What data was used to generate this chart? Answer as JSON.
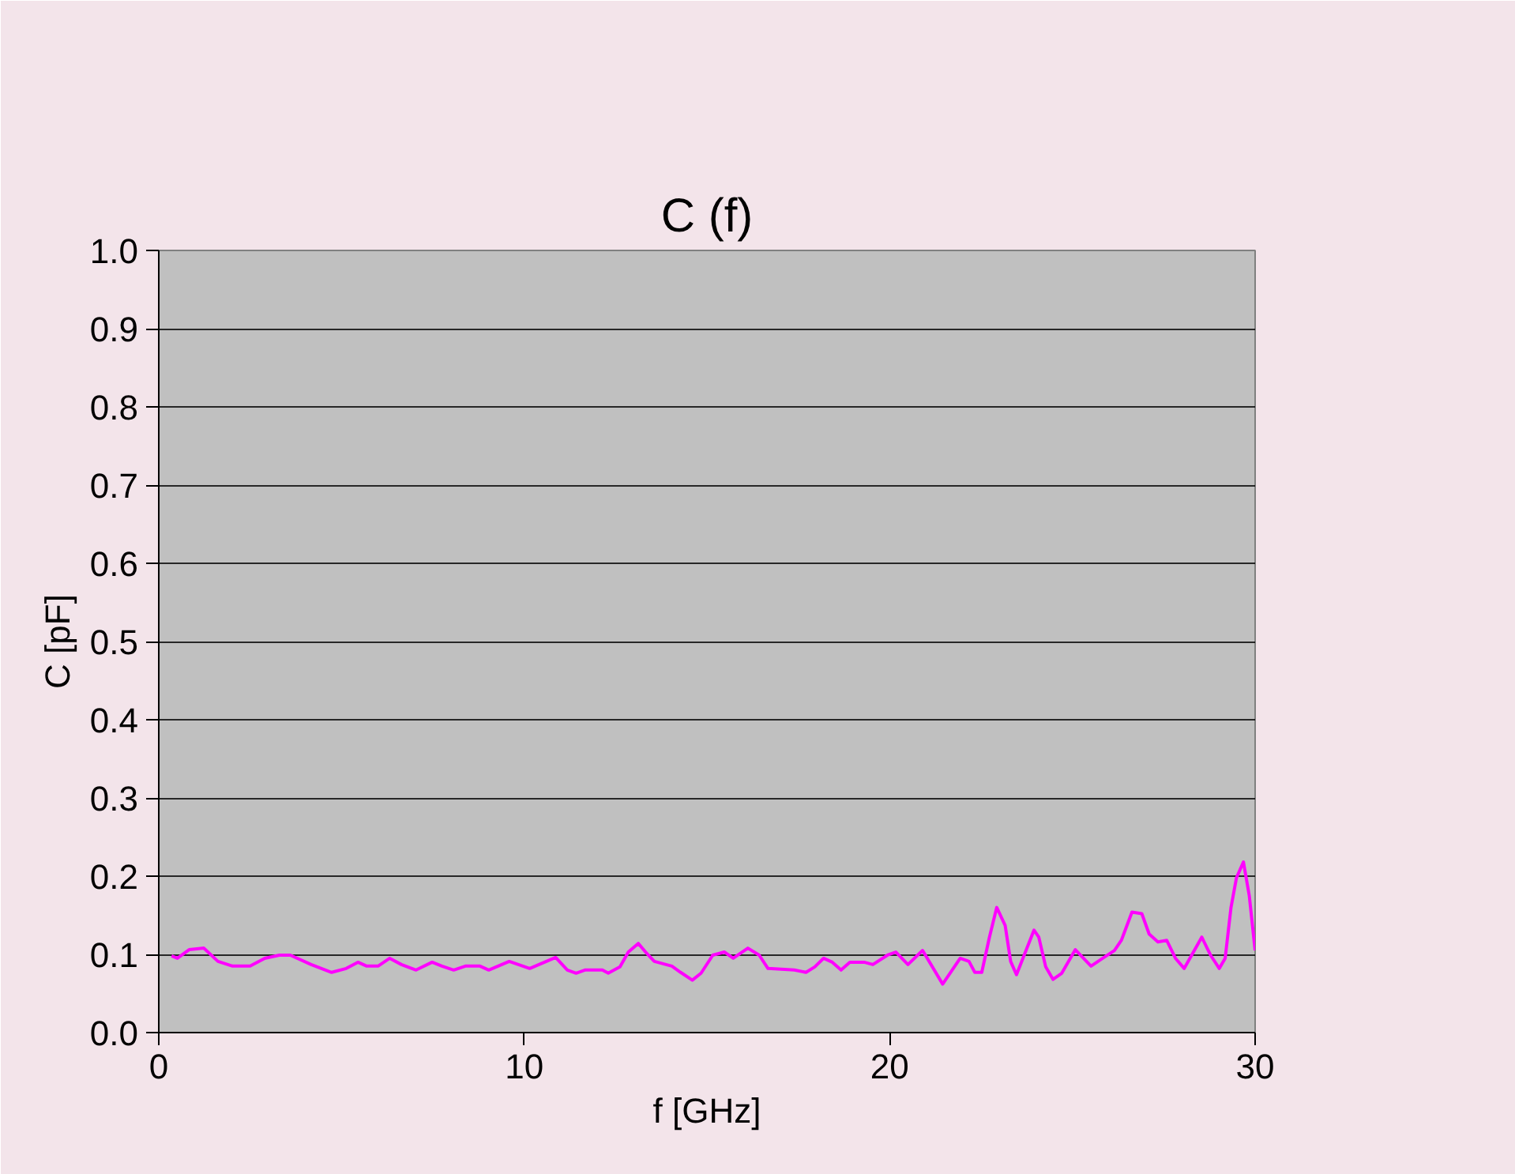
{
  "chart_data": {
    "type": "line",
    "title": "C (f)",
    "xlabel": "f [GHz]",
    "ylabel": "C [pF]",
    "xlim": [
      0,
      30
    ],
    "xticks": [
      0,
      10,
      20,
      30
    ],
    "ylim": [
      0,
      1.0
    ],
    "yticks": [
      {
        "value": 0,
        "label": "0.0"
      },
      {
        "value": 0.1,
        "label": "0.1"
      },
      {
        "value": 0.2,
        "label": "0.2"
      },
      {
        "value": 0.3,
        "label": "0.3"
      },
      {
        "value": 0.4,
        "label": "0.4"
      },
      {
        "value": 0.5,
        "label": "0.5"
      },
      {
        "value": 0.6,
        "label": "0.6"
      },
      {
        "value": 0.7,
        "label": "0.7"
      },
      {
        "value": 0.8,
        "label": "0.8"
      },
      {
        "value": 0.9,
        "label": "0.9"
      },
      {
        "value": 1.0,
        "label": "1.0"
      }
    ],
    "grid": "y",
    "marker": "none",
    "line_style": "solid",
    "series": [
      {
        "color": "#ff00ff",
        "x": [
          0.35,
          0.51,
          0.83,
          1.23,
          1.62,
          2.02,
          2.5,
          2.9,
          3.3,
          3.6,
          4.17,
          4.73,
          5.13,
          5.45,
          5.69,
          6.0,
          6.32,
          6.64,
          7.04,
          7.48,
          7.75,
          8.07,
          8.39,
          8.79,
          9.03,
          9.59,
          10.15,
          10.86,
          11.18,
          11.42,
          11.66,
          12.14,
          12.3,
          12.62,
          12.85,
          13.12,
          13.32,
          13.56,
          14.04,
          14.28,
          14.6,
          14.84,
          15.16,
          15.48,
          15.72,
          16.12,
          16.43,
          16.67,
          17.39,
          17.71,
          17.95,
          18.19,
          18.43,
          18.67,
          18.91,
          19.3,
          19.54,
          19.94,
          20.17,
          20.5,
          20.9,
          21.45,
          21.93,
          22.17,
          22.33,
          22.52,
          22.73,
          22.93,
          23.16,
          23.31,
          23.47,
          23.68,
          23.95,
          24.08,
          24.27,
          24.47,
          24.71,
          25.08,
          25.51,
          25.83,
          26.15,
          26.34,
          26.63,
          26.9,
          27.1,
          27.34,
          27.58,
          27.82,
          28.06,
          28.54,
          28.78,
          29.02,
          29.18,
          29.34,
          29.49,
          29.68,
          29.84,
          30.0
        ],
        "values": [
          0.098,
          0.095,
          0.106,
          0.108,
          0.091,
          0.085,
          0.085,
          0.095,
          0.099,
          0.099,
          0.087,
          0.077,
          0.082,
          0.09,
          0.085,
          0.085,
          0.095,
          0.087,
          0.08,
          0.09,
          0.085,
          0.08,
          0.085,
          0.085,
          0.08,
          0.091,
          0.082,
          0.096,
          0.08,
          0.076,
          0.08,
          0.08,
          0.076,
          0.084,
          0.103,
          0.114,
          0.103,
          0.091,
          0.085,
          0.077,
          0.067,
          0.076,
          0.099,
          0.103,
          0.095,
          0.108,
          0.099,
          0.082,
          0.08,
          0.077,
          0.084,
          0.095,
          0.09,
          0.08,
          0.09,
          0.09,
          0.087,
          0.099,
          0.103,
          0.087,
          0.105,
          0.062,
          0.095,
          0.091,
          0.077,
          0.077,
          0.122,
          0.16,
          0.137,
          0.091,
          0.074,
          0.099,
          0.131,
          0.122,
          0.084,
          0.068,
          0.076,
          0.106,
          0.085,
          0.095,
          0.105,
          0.118,
          0.154,
          0.152,
          0.126,
          0.116,
          0.118,
          0.095,
          0.082,
          0.122,
          0.099,
          0.082,
          0.095,
          0.16,
          0.198,
          0.218,
          0.175,
          0.105
        ]
      }
    ]
  }
}
